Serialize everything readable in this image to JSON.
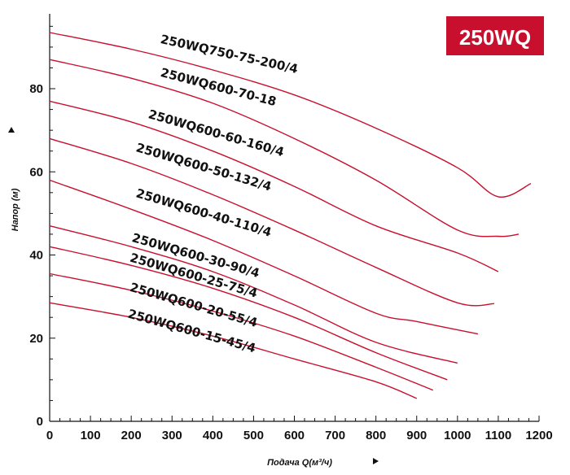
{
  "chart_data": {
    "type": "line",
    "badge": "250WQ",
    "xlabel": "Подача Q(м³/ч)",
    "ylabel": "Напор (м)",
    "xlim": [
      0,
      1200
    ],
    "ylim": [
      0,
      98
    ],
    "xticks": [
      0,
      100,
      200,
      300,
      400,
      500,
      600,
      700,
      800,
      900,
      1000,
      1100,
      1200
    ],
    "yticks": [
      0,
      20,
      40,
      60,
      80
    ],
    "grid": false,
    "colors": {
      "curve": "#c8102e",
      "badge_fill": "#c8102e",
      "axis": "#111111"
    },
    "series": [
      {
        "name": "250WQ750-75-200/4",
        "points": [
          [
            0,
            93.5
          ],
          [
            200,
            89.5
          ],
          [
            400,
            84.5
          ],
          [
            600,
            78.5
          ],
          [
            800,
            70.5
          ],
          [
            1000,
            61
          ],
          [
            1100,
            54
          ],
          [
            1180,
            57.2
          ]
        ]
      },
      {
        "name": "250WQ600-70-18",
        "points": [
          [
            0,
            87
          ],
          [
            200,
            82.5
          ],
          [
            400,
            76.5
          ],
          [
            600,
            68
          ],
          [
            800,
            58
          ],
          [
            1000,
            46
          ],
          [
            1100,
            44.5
          ],
          [
            1150,
            45
          ]
        ]
      },
      {
        "name": "250WQ600-60-160/4",
        "points": [
          [
            0,
            77
          ],
          [
            200,
            72
          ],
          [
            400,
            65
          ],
          [
            600,
            56.5
          ],
          [
            800,
            47
          ],
          [
            1000,
            40.5
          ],
          [
            1100,
            36
          ]
        ]
      },
      {
        "name": "250WQ600-50-132/4",
        "points": [
          [
            0,
            68
          ],
          [
            200,
            62
          ],
          [
            400,
            54.5
          ],
          [
            600,
            46
          ],
          [
            800,
            37
          ],
          [
            1000,
            28.5
          ],
          [
            1090,
            28.3
          ]
        ]
      },
      {
        "name": "250WQ600-40-110/4",
        "points": [
          [
            0,
            58
          ],
          [
            200,
            51
          ],
          [
            400,
            43.5
          ],
          [
            600,
            35
          ],
          [
            800,
            26
          ],
          [
            900,
            24
          ],
          [
            1050,
            21
          ]
        ]
      },
      {
        "name": "250WQ600-30-90/4",
        "points": [
          [
            0,
            47
          ],
          [
            200,
            42
          ],
          [
            400,
            36
          ],
          [
            600,
            28
          ],
          [
            800,
            19
          ],
          [
            1000,
            14
          ]
        ]
      },
      {
        "name": "250WQ600-25-75/4",
        "points": [
          [
            0,
            42
          ],
          [
            200,
            37.5
          ],
          [
            400,
            32
          ],
          [
            600,
            25
          ],
          [
            800,
            16.5
          ],
          [
            975,
            10
          ]
        ]
      },
      {
        "name": "250WQ600-20-55/4",
        "points": [
          [
            0,
            35.5
          ],
          [
            200,
            31.5
          ],
          [
            400,
            26.5
          ],
          [
            600,
            20.5
          ],
          [
            800,
            13
          ],
          [
            940,
            7.5
          ]
        ]
      },
      {
        "name": "250WQ600-15-45/4",
        "points": [
          [
            0,
            28.5
          ],
          [
            200,
            25
          ],
          [
            400,
            20.5
          ],
          [
            600,
            15
          ],
          [
            800,
            9.5
          ],
          [
            900,
            5.5
          ]
        ]
      }
    ]
  }
}
